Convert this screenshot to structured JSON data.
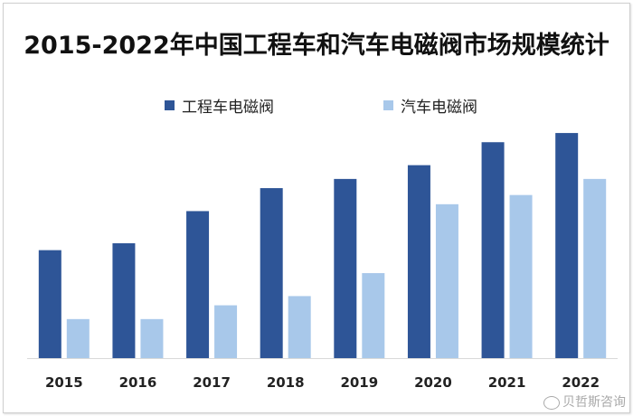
{
  "chart_data": {
    "type": "bar",
    "title": "2015-2022年中国工程车和汽车电磁阀市场规模统计",
    "categories": [
      "2015",
      "2016",
      "2017",
      "2018",
      "2019",
      "2020",
      "2021",
      "2022"
    ],
    "series": [
      {
        "name": "工程车电磁阀",
        "color": "#2e5597",
        "values": [
          47,
          50,
          64,
          74,
          78,
          84,
          94,
          98
        ]
      },
      {
        "name": "汽车电磁阀",
        "color": "#a8c8ea",
        "values": [
          17,
          17,
          23,
          27,
          37,
          67,
          71,
          78
        ]
      }
    ],
    "xlabel": "",
    "ylabel": "",
    "ylim": [
      0,
      100
    ],
    "grid": false,
    "legend_position": "top"
  },
  "watermark": {
    "text": "贝哲斯咨询"
  }
}
